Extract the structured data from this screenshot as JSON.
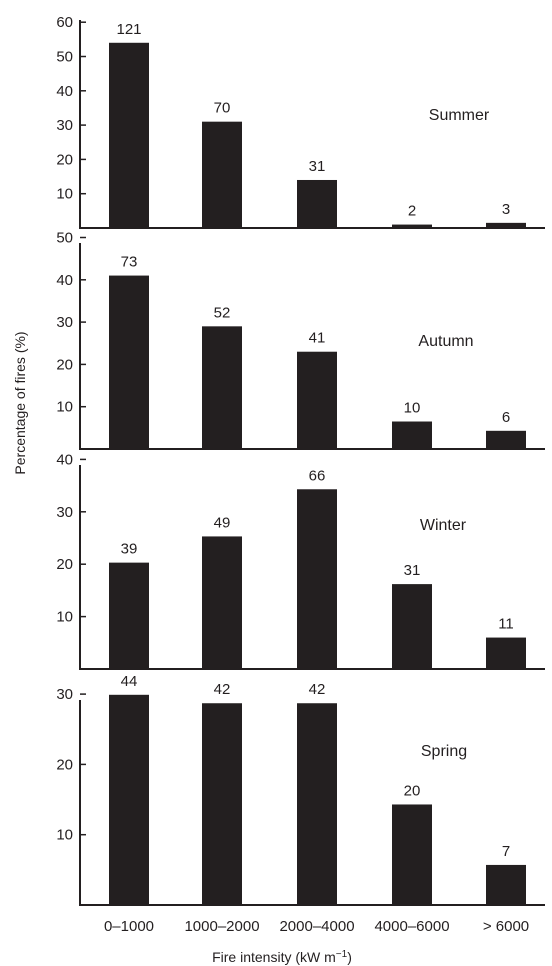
{
  "ylabel": "Percentage of fires (%)",
  "xlabel_main": "Fire intensity (kW m",
  "xlabel_sup": "−1",
  "xlabel_close": ")",
  "categories": [
    "0–1000",
    "1000–2000",
    "2000–4000",
    "4000–6000",
    "> 6000"
  ],
  "colors": {
    "bar": "#231f20",
    "axis": "#231f20"
  },
  "chart_data": [
    {
      "type": "bar",
      "title": "Summer",
      "categories": [
        "0–1000",
        "1000–2000",
        "2000–4000",
        "4000–6000",
        "> 6000"
      ],
      "values": [
        54,
        31,
        14,
        1,
        1.5
      ],
      "data_labels": [
        "121",
        "70",
        "31",
        "2",
        "3"
      ],
      "ylim": [
        0,
        62
      ],
      "yticks": [
        10,
        20,
        30,
        40,
        50,
        60
      ]
    },
    {
      "type": "bar",
      "title": "Autumn",
      "categories": [
        "0–1000",
        "1000–2000",
        "2000–4000",
        "4000–6000",
        "> 6000"
      ],
      "values": [
        41,
        29,
        23,
        6.5,
        4.3
      ],
      "data_labels": [
        "73",
        "52",
        "41",
        "10",
        "6"
      ],
      "ylim": [
        0,
        51
      ],
      "yticks": [
        10,
        20,
        30,
        40,
        50
      ]
    },
    {
      "type": "bar",
      "title": "Winter",
      "categories": [
        "0–1000",
        "1000–2000",
        "2000–4000",
        "4000–6000",
        "> 6000"
      ],
      "values": [
        20.3,
        25.3,
        34.3,
        16.2,
        6
      ],
      "data_labels": [
        "39",
        "49",
        "66",
        "31",
        "11"
      ],
      "ylim": [
        0,
        41
      ],
      "yticks": [
        10,
        20,
        30,
        40
      ]
    },
    {
      "type": "bar",
      "title": "Spring",
      "categories": [
        "0–1000",
        "1000–2000",
        "2000–4000",
        "4000–6000",
        "> 6000"
      ],
      "values": [
        29.9,
        28.7,
        28.7,
        14.3,
        5.7
      ],
      "data_labels": [
        "44",
        "42",
        "42",
        "20",
        "7"
      ],
      "ylim": [
        0,
        31
      ],
      "yticks": [
        10,
        20,
        30
      ]
    }
  ]
}
